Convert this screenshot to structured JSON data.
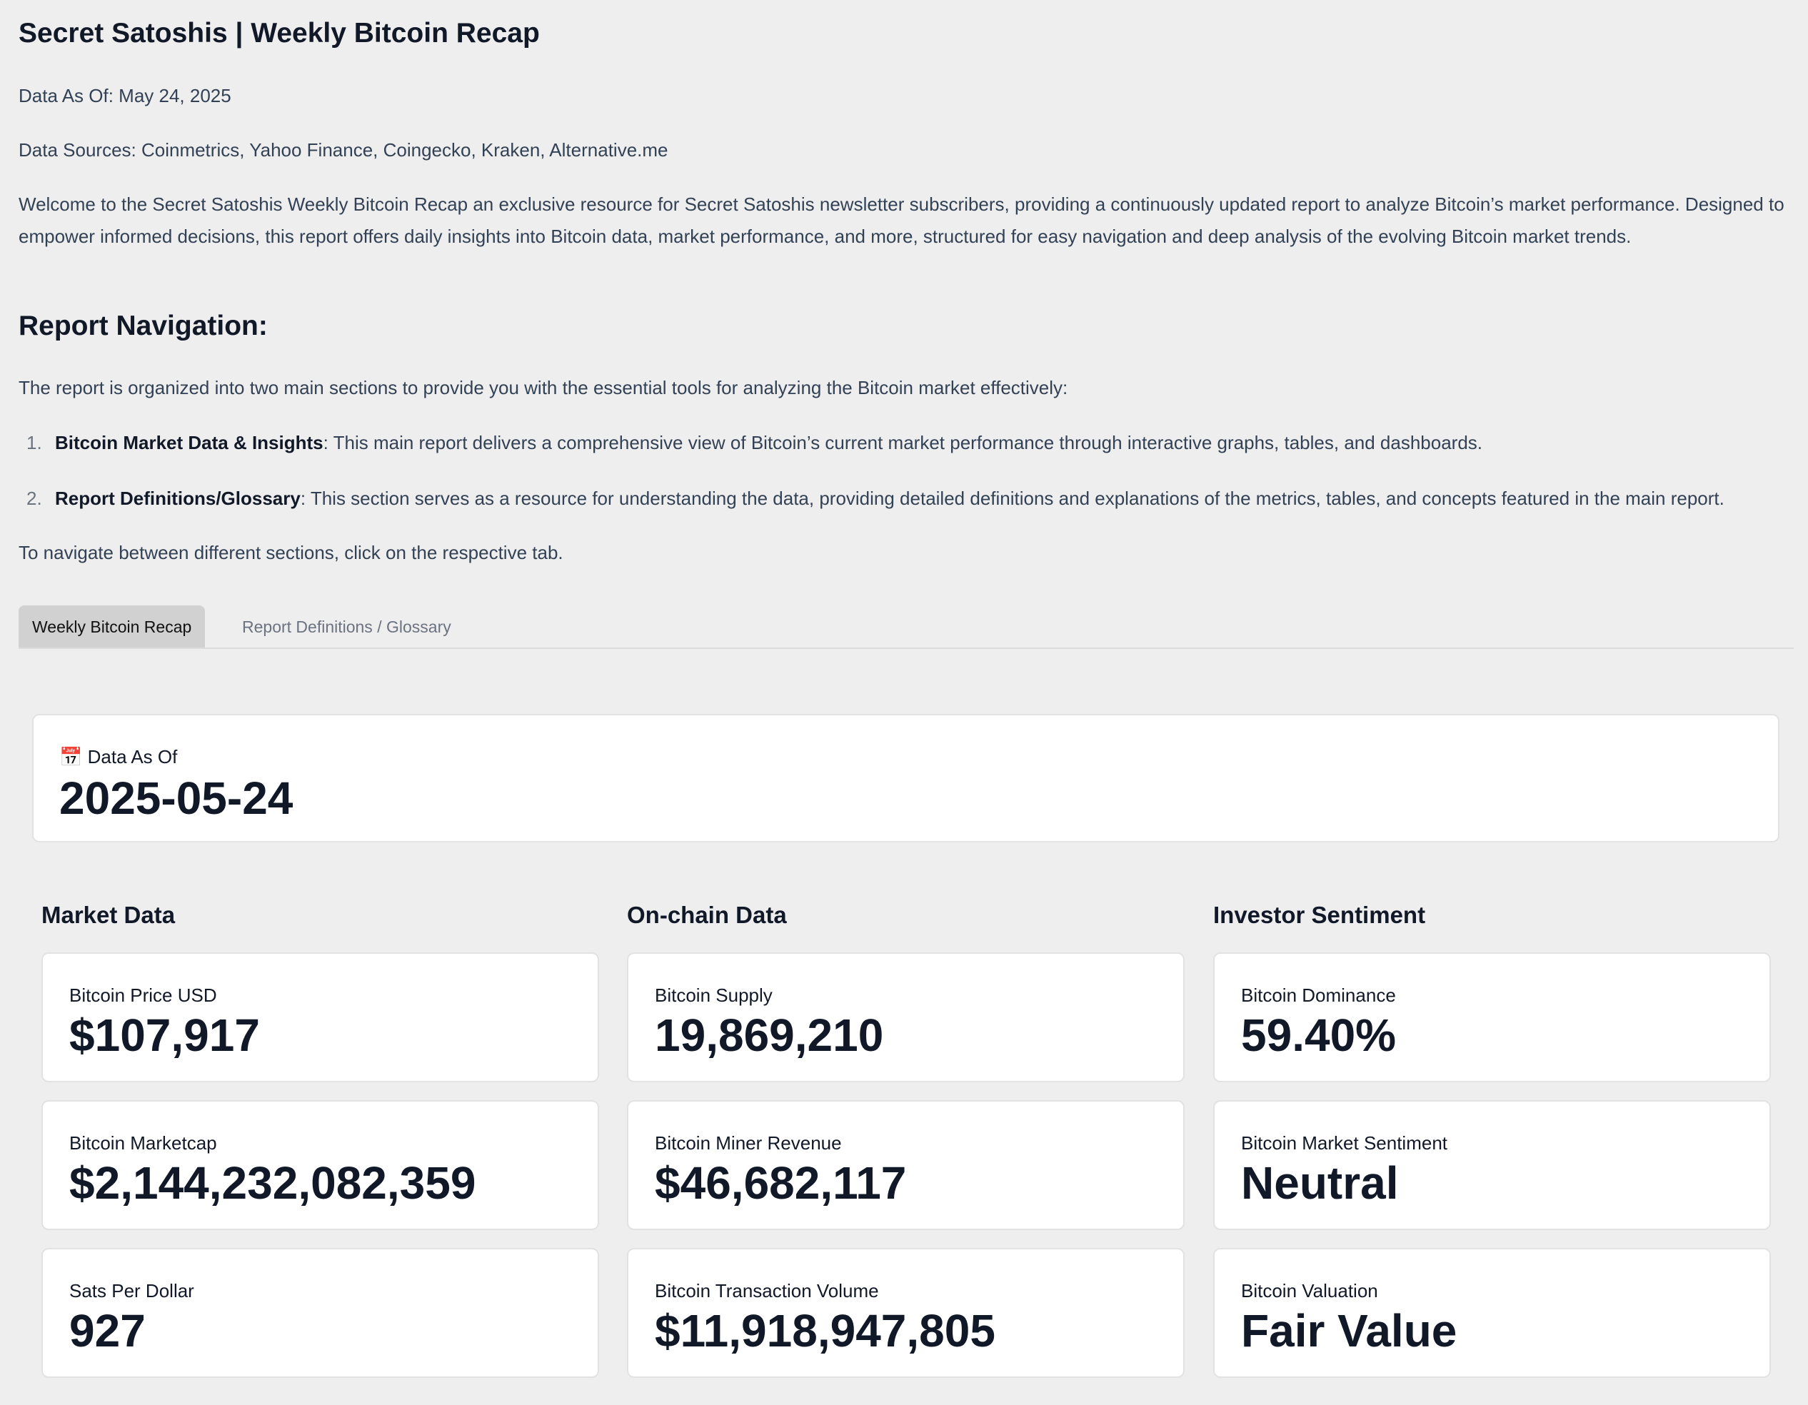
{
  "header": {
    "title": "Secret Satoshis | Weekly Bitcoin Recap",
    "data_as_of": "Data As Of: May 24, 2025",
    "data_sources": "Data Sources: Coinmetrics, Yahoo Finance, Coingecko, Kraken, Alternative.me",
    "intro": "Welcome to the Secret Satoshis Weekly Bitcoin Recap an exclusive resource for Secret Satoshis newsletter subscribers, providing a continuously updated report to analyze Bitcoin’s market performance. Designed to empower informed decisions, this report offers daily insights into Bitcoin data, market performance, and more, structured for easy navigation and deep analysis of the evolving Bitcoin market trends."
  },
  "navigation": {
    "heading": "Report Navigation:",
    "intro": "The report is organized into two main sections to provide you with the essential tools for analyzing the Bitcoin market effectively:",
    "items": [
      {
        "number": "1.",
        "label": "Bitcoin Market Data & Insights",
        "text": ": This main report delivers a comprehensive view of Bitcoin’s current market performance through interactive graphs, tables, and dashboards."
      },
      {
        "number": "2.",
        "label": "Report Definitions/Glossary",
        "text": ": This section serves as a resource for understanding the data, providing detailed definitions and explanations of the metrics, tables, and concepts featured in the main report."
      }
    ],
    "note": "To navigate between different sections, click on the respective tab."
  },
  "tabs": [
    "Weekly Bitcoin Recap",
    "Report Definitions / Glossary"
  ],
  "date_card": {
    "label": "Data As Of",
    "value": "2025-05-24"
  },
  "sections": [
    {
      "title": "Market Data",
      "cards": [
        {
          "label": "Bitcoin Price USD",
          "value": "$107,917"
        },
        {
          "label": "Bitcoin Marketcap",
          "value": "$2,144,232,082,359"
        },
        {
          "label": "Sats Per Dollar",
          "value": "927"
        }
      ]
    },
    {
      "title": "On-chain Data",
      "cards": [
        {
          "label": "Bitcoin Supply",
          "value": "19,869,210"
        },
        {
          "label": "Bitcoin Miner Revenue",
          "value": "$46,682,117"
        },
        {
          "label": "Bitcoin Transaction Volume",
          "value": "$11,918,947,805"
        }
      ]
    },
    {
      "title": "Investor Sentiment",
      "cards": [
        {
          "label": "Bitcoin Dominance",
          "value": "59.40%"
        },
        {
          "label": "Bitcoin Market Sentiment",
          "value": "Neutral"
        },
        {
          "label": "Bitcoin Valuation",
          "value": "Fair Value"
        }
      ]
    }
  ]
}
